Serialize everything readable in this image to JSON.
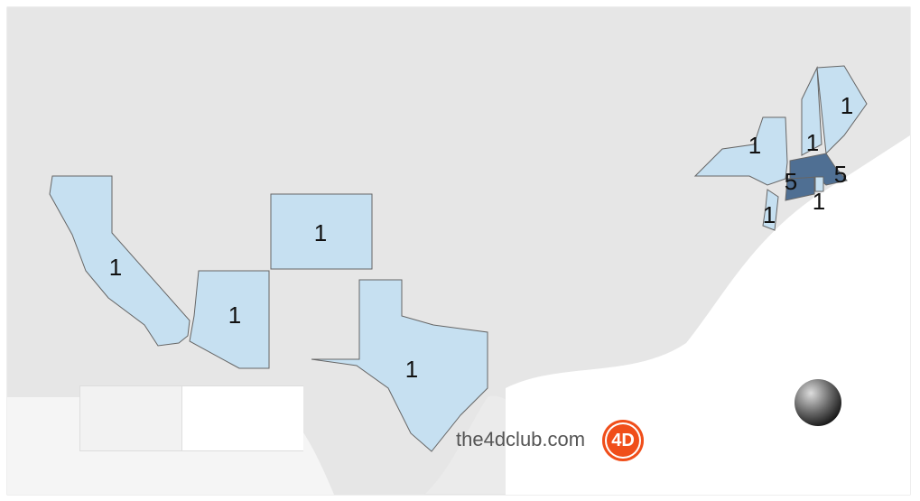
{
  "map": {
    "colors": {
      "low": "#c6e0f1",
      "high": "#4f6f93",
      "background": "#e8e8e8",
      "water": "#ffffff"
    },
    "states": [
      {
        "name": "California",
        "value": 1
      },
      {
        "name": "Arizona",
        "value": 1
      },
      {
        "name": "Colorado",
        "value": 1
      },
      {
        "name": "Texas",
        "value": 1
      },
      {
        "name": "New York",
        "value": 1
      },
      {
        "name": "New Jersey",
        "value": 1
      },
      {
        "name": "New Hampshire",
        "value": 1
      },
      {
        "name": "Maine",
        "value": 1
      },
      {
        "name": "Connecticut",
        "value": 5
      },
      {
        "name": "Massachusetts",
        "value": 5
      },
      {
        "name": "Rhode Island",
        "value": 1
      }
    ]
  },
  "watermark": {
    "text": "the4dclub.com",
    "logo": "4D"
  },
  "icons": {
    "globe": "globe-icon"
  }
}
